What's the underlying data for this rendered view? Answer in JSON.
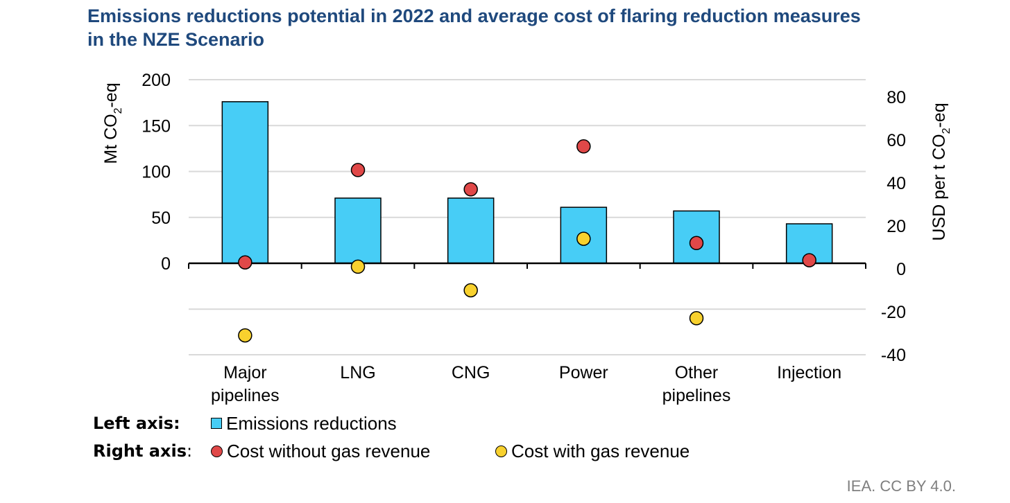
{
  "title": {
    "line1": "Emissions reductions potential in 2022 and average cost of flaring reduction measures",
    "line2": "in the NZE Scenario"
  },
  "legend": {
    "left_axis_label": "Left axis",
    "right_axis_label": "Right axis",
    "colon": ":",
    "bar_item": "Emissions reductions",
    "red_item": "Cost without gas revenue",
    "yellow_item": "Cost with gas revenue"
  },
  "source": "IEA. CC BY 4.0.",
  "colors": {
    "bar": "#47cdf6",
    "red_dot": "#e04848",
    "yellow_dot": "#f8d12e",
    "title": "#1f497d",
    "grid": "#d9d9d9"
  },
  "chart_data": {
    "type": "bar",
    "categories": [
      [
        "Major",
        "pipelines"
      ],
      [
        "LNG"
      ],
      [
        "CNG"
      ],
      [
        "Power"
      ],
      [
        "Other",
        "pipelines"
      ],
      [
        "Injection"
      ]
    ],
    "left_axis": {
      "label_main": "Mt CO",
      "label_sub": "2",
      "label_end": "-eq",
      "ticks": [
        "200",
        "150",
        "100",
        "50",
        "0"
      ],
      "tick_values": [
        200,
        150,
        100,
        50,
        0
      ],
      "ylim": [
        -100,
        200
      ]
    },
    "right_axis": {
      "label_main": "USD per t CO",
      "label_sub": "2",
      "label_end": "-eq",
      "ticks": [
        "80",
        "60",
        "40",
        "20",
        "0",
        "-20",
        "-40"
      ],
      "tick_values": [
        80,
        60,
        40,
        20,
        0,
        -20,
        -40
      ],
      "ylim": [
        -40,
        86
      ]
    },
    "series": [
      {
        "name": "Emissions reductions",
        "axis": "left",
        "kind": "bar",
        "values": [
          176,
          71,
          71,
          61,
          57,
          43
        ]
      },
      {
        "name": "Cost without gas revenue",
        "axis": "right",
        "kind": "dot",
        "values": [
          3,
          46,
          37,
          57,
          12,
          4
        ]
      },
      {
        "name": "Cost with gas revenue",
        "axis": "right",
        "kind": "dot",
        "values": [
          -31,
          1,
          -10,
          14,
          -23,
          null
        ]
      }
    ],
    "grid": true
  }
}
